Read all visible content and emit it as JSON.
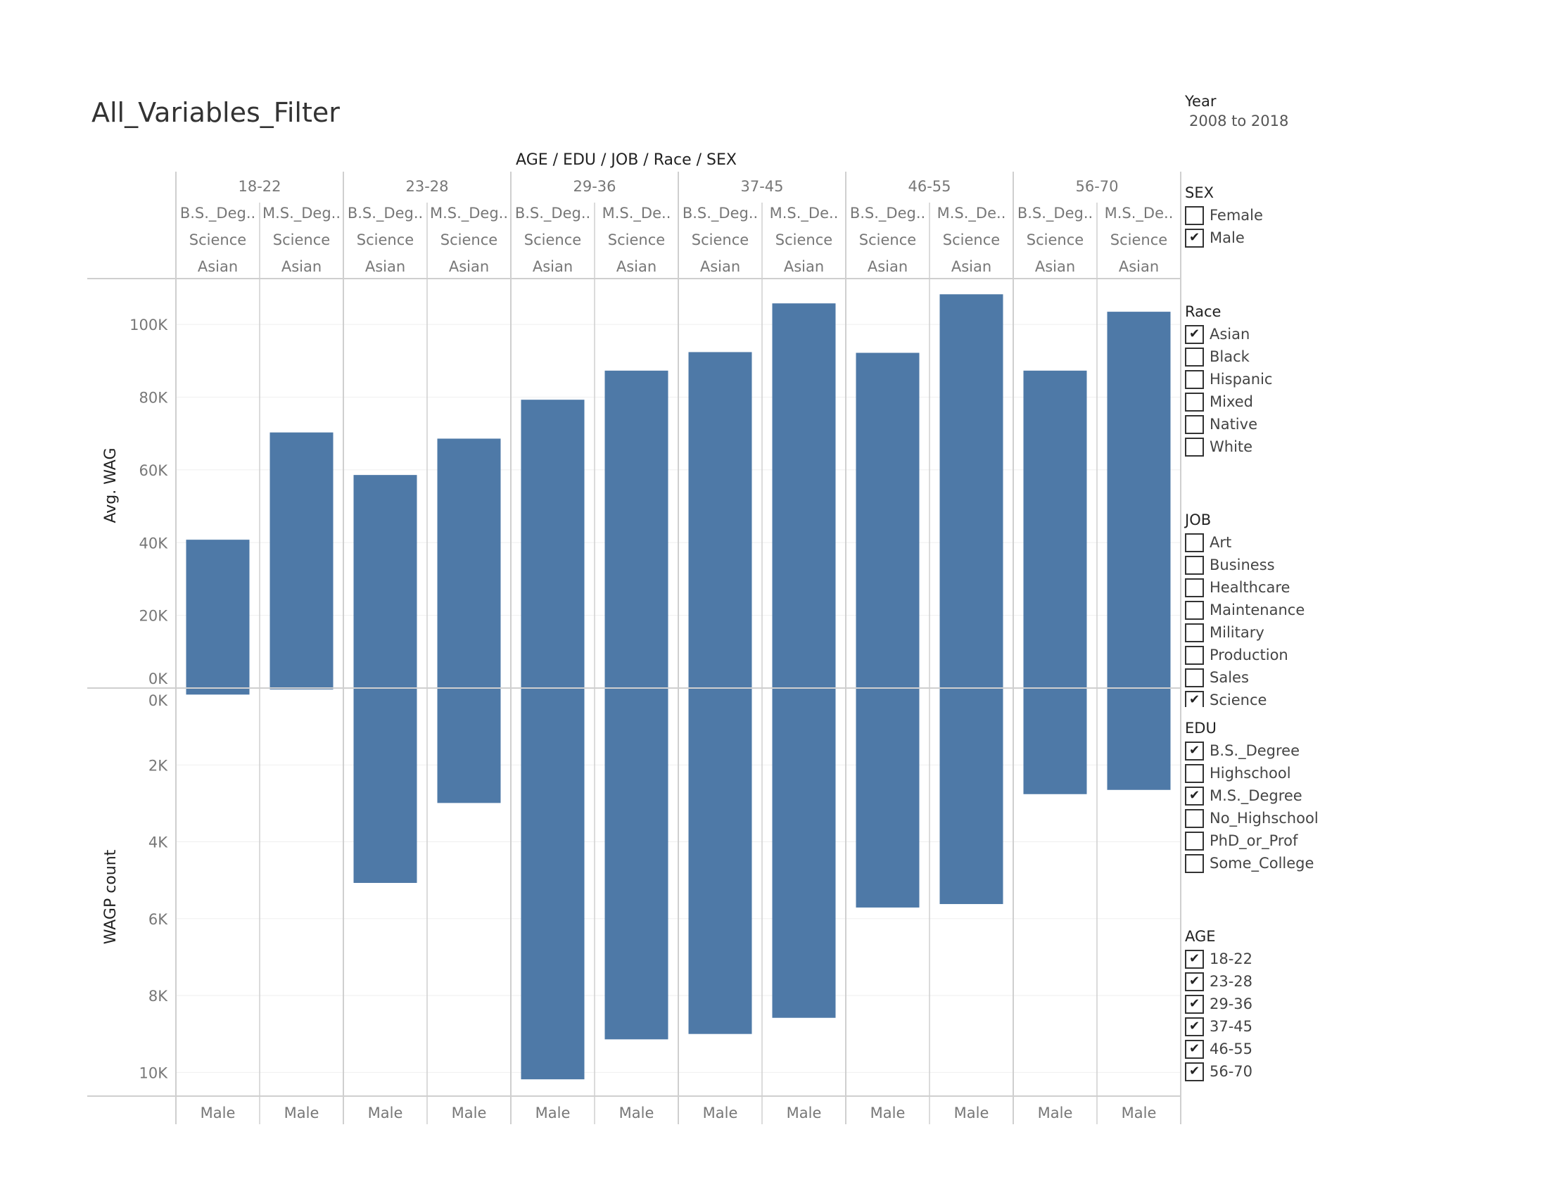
{
  "title": "All_Variables_Filter",
  "colors": {
    "bar": "#4e79a7",
    "grid": "#efefef",
    "divider": "#cfcfcf",
    "axis_text": "#777777"
  },
  "filters": {
    "year": {
      "title": "Year",
      "value": "2008 to 2018"
    },
    "sex": {
      "title": "SEX",
      "items": [
        {
          "label": "Female",
          "checked": false
        },
        {
          "label": "Male",
          "checked": true
        }
      ]
    },
    "race": {
      "title": "Race",
      "items": [
        {
          "label": "Asian",
          "checked": true
        },
        {
          "label": "Black",
          "checked": false
        },
        {
          "label": "Hispanic",
          "checked": false
        },
        {
          "label": "Mixed",
          "checked": false
        },
        {
          "label": "Native",
          "checked": false
        },
        {
          "label": "White",
          "checked": false
        }
      ]
    },
    "job": {
      "title": "JOB",
      "items": [
        {
          "label": "Art",
          "checked": false
        },
        {
          "label": "Business",
          "checked": false
        },
        {
          "label": "Healthcare",
          "checked": false
        },
        {
          "label": "Maintenance",
          "checked": false
        },
        {
          "label": "Military",
          "checked": false
        },
        {
          "label": "Production",
          "checked": false
        },
        {
          "label": "Sales",
          "checked": false
        },
        {
          "label": "Science",
          "checked": true
        }
      ]
    },
    "edu": {
      "title": "EDU",
      "items": [
        {
          "label": "B.S._Degree",
          "checked": true
        },
        {
          "label": "Highschool",
          "checked": false
        },
        {
          "label": "M.S._Degree",
          "checked": true
        },
        {
          "label": "No_Highschool",
          "checked": false
        },
        {
          "label": "PhD_or_Prof",
          "checked": false
        },
        {
          "label": "Some_College",
          "checked": false
        }
      ]
    },
    "age": {
      "title": "AGE",
      "items": [
        {
          "label": "18-22",
          "checked": true
        },
        {
          "label": "23-28",
          "checked": true
        },
        {
          "label": "29-36",
          "checked": true
        },
        {
          "label": "37-45",
          "checked": true
        },
        {
          "label": "46-55",
          "checked": true
        },
        {
          "label": "56-70",
          "checked": true
        }
      ]
    }
  },
  "chart_data": {
    "type": "bar",
    "header_title": "AGE / EDU / JOB / Race / SEX",
    "age_groups": [
      "18-22",
      "23-28",
      "29-36",
      "37-45",
      "46-55",
      "56-70"
    ],
    "edu_labels": [
      "B.S._Deg..",
      "M.S._Deg..",
      "B.S._Deg..",
      "M.S._Deg..",
      "B.S._Deg..",
      "M.S._De..",
      "B.S._Deg..",
      "M.S._De..",
      "B.S._Deg..",
      "M.S._De..",
      "B.S._Deg..",
      "M.S._De.."
    ],
    "job_labels": [
      "Science",
      "Science",
      "Science",
      "Science",
      "Science",
      "Science",
      "Science",
      "Science",
      "Science",
      "Science",
      "Science",
      "Science"
    ],
    "race_labels": [
      "Asian",
      "Asian",
      "Asian",
      "Asian",
      "Asian",
      "Asian",
      "Asian",
      "Asian",
      "Asian",
      "Asian",
      "Asian",
      "Asian"
    ],
    "sex_labels": [
      "Male",
      "Male",
      "Male",
      "Male",
      "Male",
      "Male",
      "Male",
      "Male",
      "Male",
      "Male",
      "Male",
      "Male"
    ],
    "series": [
      {
        "name": "Avg. WAG",
        "values": [
          40800,
          70300,
          58600,
          68600,
          79300,
          87300,
          92400,
          105800,
          92200,
          108300,
          87300,
          103500
        ]
      },
      {
        "name": "WAGP count",
        "values": [
          170,
          20,
          5070,
          2990,
          10180,
          9140,
          9000,
          8580,
          5710,
          5620,
          2760,
          2650
        ]
      }
    ],
    "top_axis": {
      "label": "Avg. WAG",
      "ylim": [
        0,
        113000
      ],
      "ticks": [
        "0K",
        "20K",
        "40K",
        "60K",
        "80K",
        "100K"
      ]
    },
    "bottom_axis": {
      "label": "WAGP count",
      "ylim": [
        0,
        10580
      ],
      "reversed": true,
      "ticks": [
        "0K",
        "2K",
        "4K",
        "6K",
        "8K",
        "10K"
      ]
    },
    "grid": true,
    "legend": "none"
  }
}
